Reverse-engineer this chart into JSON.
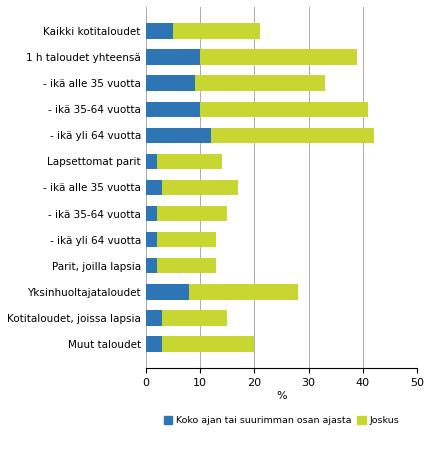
{
  "categories": [
    "Kaikki kotitaloudet",
    "1 h taloudet yhteensä",
    "- ikä alle 35 vuotta",
    "- ikä 35-64 vuotta",
    "- ikä yli 64 vuotta",
    "Lapsettomat parit",
    "- ikä alle 35 vuotta",
    "- ikä 35-64 vuotta",
    "- ikä yli 64 vuotta",
    "Parit, joilla lapsia",
    "Yksinhuoltajataloudet",
    "Kotitaloudet, joissa lapsia",
    "Muut taloudet"
  ],
  "blue_values": [
    5,
    10,
    9,
    10,
    12,
    2,
    3,
    2,
    2,
    2,
    8,
    3,
    3
  ],
  "green_values": [
    16,
    29,
    24,
    31,
    30,
    12,
    14,
    13,
    11,
    11,
    20,
    12,
    17
  ],
  "blue_color": "#2E75B6",
  "green_color": "#C7D630",
  "legend_blue": "Koko ajan tai suurimman osan ajasta",
  "legend_green": "Joskus",
  "xlabel": "%",
  "xlim": [
    0,
    50
  ],
  "xticks": [
    0,
    10,
    20,
    30,
    40,
    50
  ],
  "bar_height": 0.6,
  "grid_color": "#AAAAAA",
  "background_color": "#FFFFFF",
  "label_fontsize": 7.5,
  "tick_fontsize": 8.0
}
